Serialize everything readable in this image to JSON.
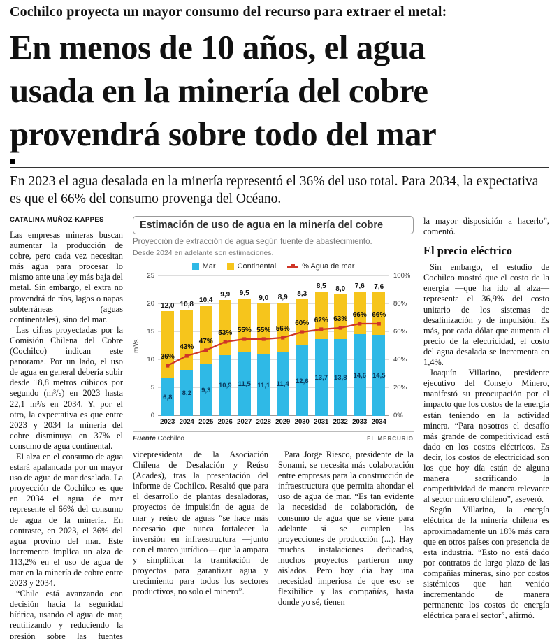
{
  "kicker": "Cochilco proyecta un mayor consumo del recurso para extraer el metal:",
  "headline": "En menos de 10 años, el agua\nusada en la minería del cobre\nprovendrá sobre todo del mar",
  "deck": "En 2023 el agua desalada en la minería representó el 36% del uso total. Para 2034, la expectativa es que el 66% del consumo provenga del Océano.",
  "byline": "CATALINA MUÑOZ-KAPPES",
  "left_column": {
    "paragraphs": [
      "Las empresas mineras buscan aumentar la producción de cobre, pero cada vez necesitan más agua para procesar lo mismo ante una ley más baja del metal. Sin embargo, el extra no provendrá de ríos, lagos o napas subterráneas (aguas continentales), sino del mar.",
      "Las cifras proyectadas por la Comisión Chilena del Cobre (Cochilco) indican este panorama. Por un lado, el uso de agua en general debería subir desde 18,8 metros cúbicos por segundo (m³/s) en 2023 hasta 22,1 m³/s en 2034. Y, por el otro, la expectativa es que entre 2023 y 2034 la minería del cobre disminuya en 37% el consumo de agua continental.",
      "El alza en el consumo de agua estará apalancada por un mayor uso de agua de mar desalada. La proyección de Cochilco es que en 2034 el agua de mar represente el 66% del consumo de agua de la minería. En contraste, en 2023, el 36% del agua provino del mar. Este incremento implica un alza de 113,2% en el uso de agua de mar en la minería de cobre entre 2023 y 2034.",
      "“Chile está avanzando con decisión hacia la seguridad hídrica, usando el agua de mar, reutilizando y reduciendo la presión sobre las fuentes continentales”, dijo ayer Cristina Pardo de Vera,"
    ]
  },
  "mid_left_column": {
    "paragraphs": [
      "vicepresidenta de la Asociación Chilena de Desalación y Reúso (Acades), tras la presentación del informe de Cochilco. Resaltó que para el desarrollo de plantas desaladoras, proyectos de impulsión de agua de mar y reúso de aguas “se hace más necesario que nunca fortalecer la inversión en infraestructura —junto con el marco jurídico— que la ampara y simplificar la tramitación de proyectos para garantizar agua y crecimiento para todos los sectores productivos, no solo el minero”."
    ]
  },
  "mid_right_column": {
    "paragraphs": [
      "Para Jorge Riesco, presidente de la Sonami, se necesita más colaboración entre empresas para la construcción de infraestructura que permita ahondar el uso de agua de mar. “Es tan evidente la necesidad de colaboración, de consumo de agua que se viene para adelante si se cumplen las proyecciones de producción (...). Hay muchas instalaciones dedicadas, muchos proyectos partieron muy aislados. Pero hoy día hay una necesidad imperiosa de que eso se flexibilice y las compañías, hasta donde yo sé, tienen"
    ]
  },
  "right_column": {
    "lead": "la mayor disposición a hacerlo”, comentó.",
    "heading": "El precio eléctrico",
    "paragraphs": [
      "Sin embargo, el estudio de Cochilco mostró que el costo de la energía —que ha ido al alza— representa el 36,9% del costo unitario de los sistemas de desalinización y de impulsión. Es más, por cada dólar que aumenta el precio de la electricidad, el costo del agua desalada se incrementa en 1,4%.",
      "Joaquín Villarino, presidente ejecutivo del Consejo Minero, manifestó su preocupación por el impacto que los costos de la energía están teniendo en la actividad minera. “Para nosotros el desafío más grande de competitividad está dado en los costos eléctricos. Es decir, los costos de electricidad son los que hoy día están de alguna manera sacrificando la competitividad de manera relevante al sector minero chileno”, aseveró.",
      "Según Villarino, la energía eléctrica de la minería chilena es aproximadamente un 18% más cara que en otros países con presencia de esta industria. “Esto no está dado por contratos de largo plazo de las compañías mineras, sino por costos sistémicos que han venido incrementando de manera permanente los costos de energía eléctrica para el sector”, afirmó."
    ]
  },
  "chart": {
    "title": "Estimación de uso de agua en la minería del cobre",
    "subtitle": "Proyección de extracción de agua según fuente de abastecimiento.",
    "note": "Desde 2024 en adelante son estimaciones.",
    "source_label": "Fuente",
    "source": "Cochilco",
    "credit": "EL MERCURIO"
  },
  "chart_data": {
    "type": "bar",
    "stacked": true,
    "categories": [
      "2023",
      "2024",
      "2025",
      "2026",
      "2027",
      "2028",
      "2029",
      "2030",
      "2031",
      "2032",
      "2033",
      "2034"
    ],
    "series": [
      {
        "name": "Mar",
        "color": "#2fb9e6",
        "values": [
          6.8,
          8.2,
          9.3,
          10.9,
          11.5,
          11.1,
          11.4,
          12.6,
          13.7,
          13.8,
          14.6,
          14.5
        ]
      },
      {
        "name": "Continental",
        "color": "#f6c51c",
        "values": [
          12.0,
          10.8,
          10.4,
          9.9,
          9.5,
          9.0,
          8.9,
          8.3,
          8.5,
          8.0,
          7.6,
          7.6
        ]
      }
    ],
    "line_series": {
      "name": "% Agua de mar",
      "color": "#cf3527",
      "values": [
        36,
        43,
        47,
        53,
        55,
        55,
        56,
        60,
        62,
        63,
        66,
        66
      ]
    },
    "ylabel": "m³/s",
    "left_axis_ticks": [
      0,
      5,
      10,
      15,
      20,
      25
    ],
    "right_axis_ticks": [
      "0%",
      "20%",
      "40%",
      "60%",
      "80%",
      "100%"
    ],
    "ylim": [
      0,
      25
    ],
    "right_ylim": [
      0,
      100
    ],
    "grid": true,
    "legend_position": "top"
  }
}
